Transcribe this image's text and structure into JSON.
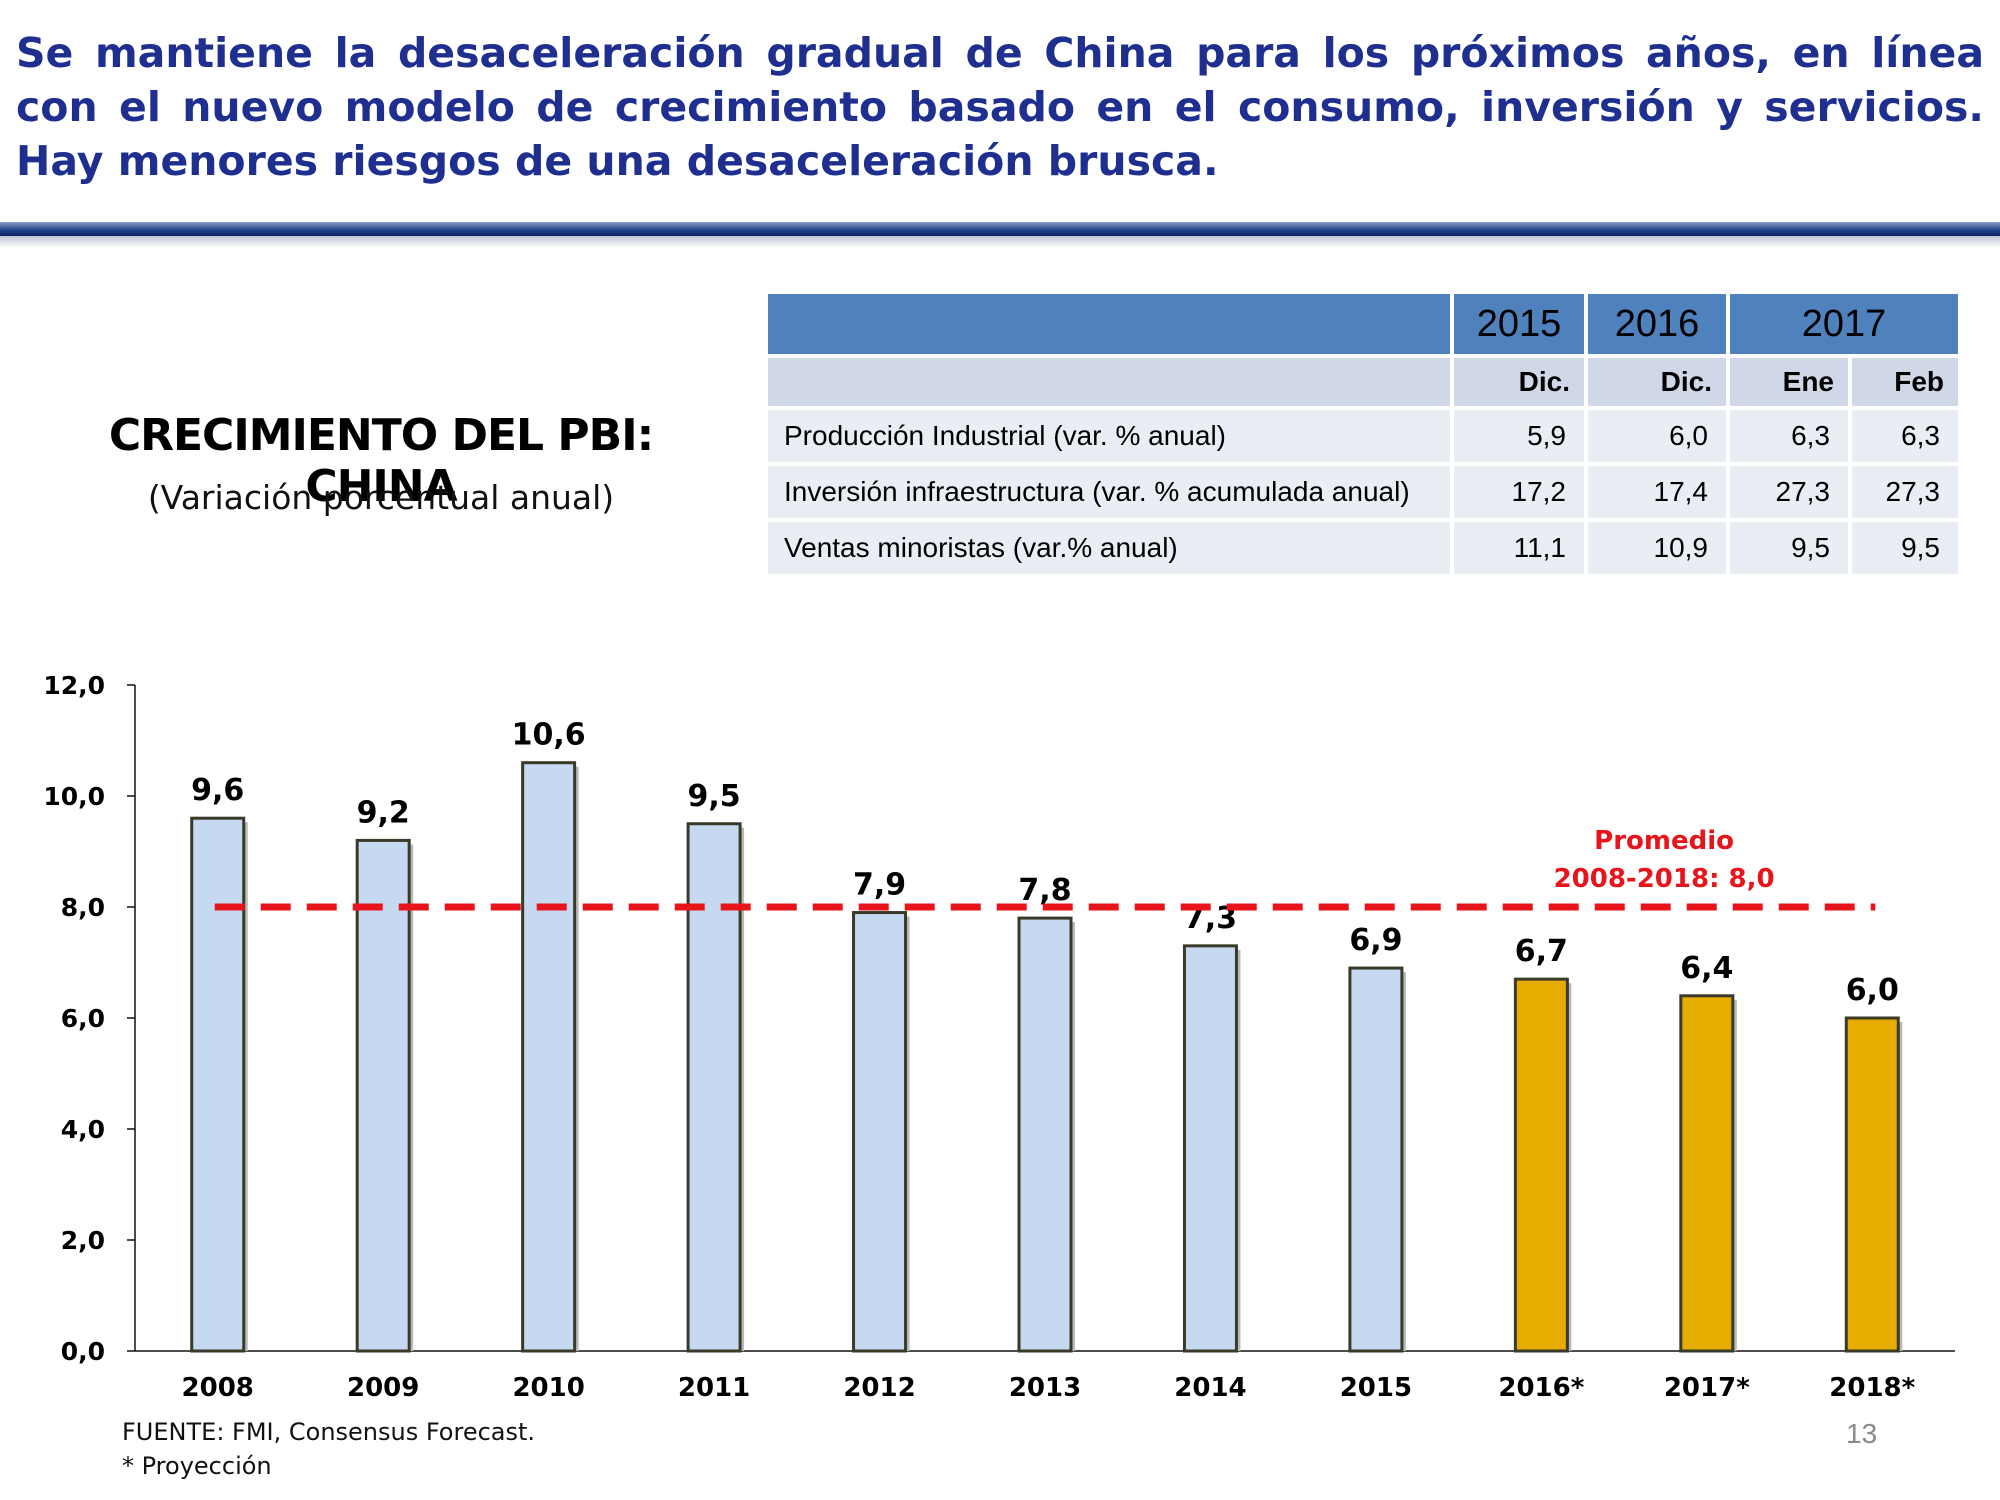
{
  "headline": "Se mantiene la desaceleración gradual de China para los próximos años, en línea con el nuevo modelo de crecimiento basado en el consumo, inversión y servicios. Hay menores riesgos de una desaceleración brusca.",
  "colors": {
    "headline": "#1f2f8f",
    "historical_bar": "#c6d9f1",
    "projected_bar": "#e6ad00",
    "average_line": "#e8141c",
    "table_header": "#4f81bd",
    "table_subheader": "#d0d8e8",
    "table_row": "#e9edf4"
  },
  "table": {
    "years": [
      "2015",
      "2016",
      "2017"
    ],
    "months": [
      "Dic.",
      "Dic.",
      "Ene",
      "Feb"
    ],
    "rows": [
      {
        "label": "Producción Industrial (var. % anual)",
        "values": [
          "5,9",
          "6,0",
          "6,3",
          "6,3"
        ]
      },
      {
        "label": "Inversión infraestructura (var. % acumulada anual)",
        "values": [
          "17,2",
          "17,4",
          "27,3",
          "27,3"
        ]
      },
      {
        "label": "Ventas minoristas (var.% anual)",
        "values": [
          "11,1",
          "10,9",
          "9,5",
          "9,5"
        ]
      }
    ]
  },
  "chart_data": {
    "type": "bar",
    "title": "CRECIMIENTO DEL PBI: CHINA",
    "subtitle": "(Variación porcentual anual)",
    "categories": [
      "2008",
      "2009",
      "2010",
      "2011",
      "2012",
      "2013",
      "2014",
      "2015",
      "2016*",
      "2017*",
      "2018*"
    ],
    "values": [
      9.6,
      9.2,
      10.6,
      9.5,
      7.9,
      7.8,
      7.3,
      6.9,
      6.7,
      6.4,
      6.0
    ],
    "value_labels": [
      "9,6",
      "9,2",
      "10,6",
      "9,5",
      "7,9",
      "7,8",
      "7,3",
      "6,9",
      "6,7",
      "6,4",
      "6,0"
    ],
    "projected": [
      false,
      false,
      false,
      false,
      false,
      false,
      false,
      false,
      true,
      true,
      true
    ],
    "ylim": [
      0,
      12
    ],
    "yticks": [
      0,
      2,
      4,
      6,
      8,
      10,
      12
    ],
    "ytick_labels": [
      "0,0",
      "2,0",
      "4,0",
      "6,0",
      "8,0",
      "10,0",
      "12,0"
    ],
    "average": {
      "value": 8.0,
      "label_line1": "Promedio",
      "label_line2": "2008-2018: 8,0"
    },
    "grid": false
  },
  "footer": {
    "source": "FUENTE: FMI, Consensus Forecast.",
    "note": "* Proyección",
    "page_number": "13"
  }
}
